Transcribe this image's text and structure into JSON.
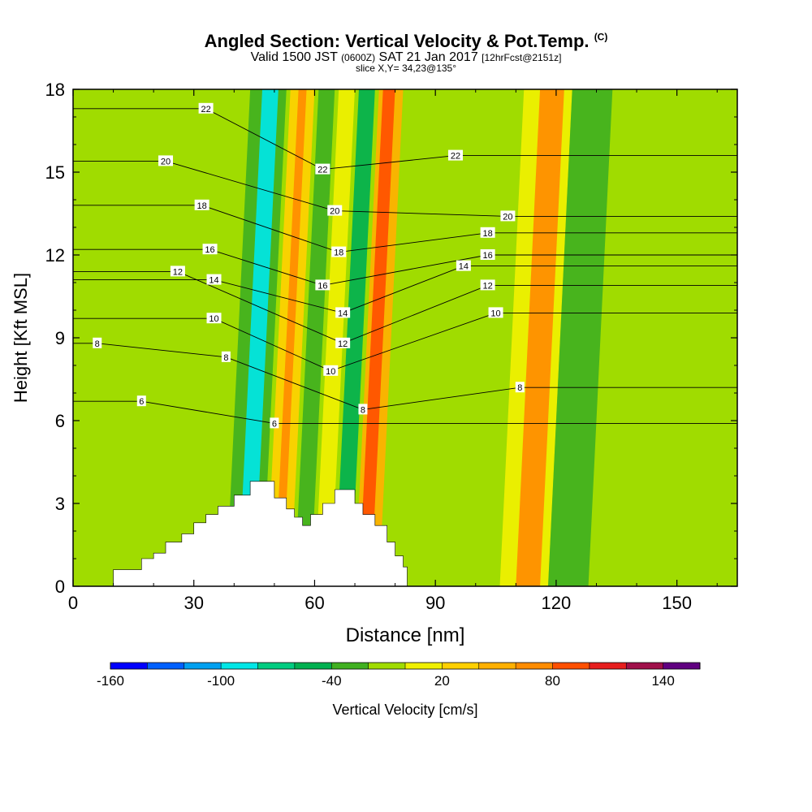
{
  "header": {
    "title": "Angled Section: Vertical Velocity & Pot.Temp.",
    "title_mark": "(C)",
    "valid_prefix": "Valid 1500 JST",
    "valid_zulu": "(0600Z)",
    "valid_date": "SAT 21 Jan 2017",
    "forecast": "[12hrFcst@2151z]",
    "slice": "slice X,Y= 34,23@135°"
  },
  "chart_data": {
    "type": "heatmap",
    "title": "Angled Section: Vertical Velocity & Pot.Temp.",
    "xlabel": "Distance [nm]",
    "ylabel": "Height [Kft MSL]",
    "xlim": [
      0,
      165
    ],
    "ylim": [
      0,
      18
    ],
    "xticks": [
      "0",
      "30",
      "60",
      "90",
      "120",
      "150"
    ],
    "yticks": [
      "0",
      "3",
      "6",
      "9",
      "12",
      "15",
      "18"
    ],
    "colorbar": {
      "label": "Vertical Velocity [cm/s]",
      "tick_labels": [
        "-160",
        "-100",
        "-40",
        "20",
        "80",
        "140"
      ],
      "colors": [
        "#0000ff",
        "#0060ff",
        "#00a0f0",
        "#00e6e6",
        "#00cc80",
        "#00b050",
        "#40b020",
        "#a0dc00",
        "#f0f000",
        "#ffd000",
        "#ffb000",
        "#ff8c00",
        "#ff5000",
        "#e61e1e",
        "#a0104a",
        "#600080"
      ]
    },
    "shading": {
      "background_color": "#a0dc00",
      "bands": [
        {
          "name": "neg",
          "x": [
            40,
            49
          ],
          "color": "#40b020"
        },
        {
          "name": "neg_core",
          "x": [
            43,
            47
          ],
          "color": "#00e6e6"
        },
        {
          "name": "pos",
          "x": [
            50,
            56
          ],
          "color": "#ffd000"
        },
        {
          "name": "pos_core",
          "x": [
            52,
            54
          ],
          "color": "#ff8c00"
        },
        {
          "name": "neg",
          "x": [
            57,
            61
          ],
          "color": "#40b020"
        },
        {
          "name": "pos",
          "x": [
            62,
            66
          ],
          "color": "#f0f000"
        },
        {
          "name": "neg",
          "x": [
            67,
            71
          ],
          "color": "#00b050"
        },
        {
          "name": "pos",
          "x": [
            72,
            78
          ],
          "color": "#ffb000"
        },
        {
          "name": "pos_core",
          "x": [
            73,
            76
          ],
          "color": "#ff5000"
        },
        {
          "name": "pos",
          "x": [
            108,
            120
          ],
          "color": "#f0f000"
        },
        {
          "name": "pos_core",
          "x": [
            112,
            118
          ],
          "color": "#ff8c00"
        },
        {
          "name": "neg",
          "x": [
            120,
            130
          ],
          "color": "#40b020"
        }
      ]
    },
    "contours": {
      "variable": "Pot.Temp.",
      "unit": "C",
      "labels": [
        {
          "text": "22",
          "x": 33,
          "y": 17.3
        },
        {
          "text": "20",
          "x": 23,
          "y": 15.4
        },
        {
          "text": "18",
          "x": 32,
          "y": 13.8
        },
        {
          "text": "16",
          "x": 34,
          "y": 12.2
        },
        {
          "text": "12",
          "x": 26,
          "y": 11.4
        },
        {
          "text": "14",
          "x": 35,
          "y": 11.1
        },
        {
          "text": "10",
          "x": 35,
          "y": 9.7
        },
        {
          "text": "8",
          "x": 6,
          "y": 8.8
        },
        {
          "text": "8",
          "x": 38,
          "y": 8.3
        },
        {
          "text": "6",
          "x": 17,
          "y": 6.7
        },
        {
          "text": "6",
          "x": 50,
          "y": 5.9
        },
        {
          "text": "22",
          "x": 62,
          "y": 15.1
        },
        {
          "text": "20",
          "x": 65,
          "y": 13.6
        },
        {
          "text": "18",
          "x": 66,
          "y": 12.1
        },
        {
          "text": "16",
          "x": 62,
          "y": 10.9
        },
        {
          "text": "14",
          "x": 67,
          "y": 9.9
        },
        {
          "text": "12",
          "x": 67,
          "y": 8.8
        },
        {
          "text": "10",
          "x": 64,
          "y": 7.8
        },
        {
          "text": "8",
          "x": 72,
          "y": 6.4
        },
        {
          "text": "22",
          "x": 95,
          "y": 15.6
        },
        {
          "text": "20",
          "x": 108,
          "y": 13.4
        },
        {
          "text": "18",
          "x": 103,
          "y": 12.8
        },
        {
          "text": "16",
          "x": 103,
          "y": 12.0
        },
        {
          "text": "14",
          "x": 97,
          "y": 11.6
        },
        {
          "text": "12",
          "x": 103,
          "y": 10.9
        },
        {
          "text": "10",
          "x": 105,
          "y": 9.9
        },
        {
          "text": "8",
          "x": 111,
          "y": 7.2
        }
      ]
    },
    "terrain": {
      "x": [
        10,
        15,
        17,
        20,
        23,
        27,
        30,
        33,
        36,
        40,
        44,
        48,
        50,
        53,
        55,
        57,
        59,
        62,
        65,
        68,
        70,
        72,
        75,
        78,
        80,
        82,
        83
      ],
      "height_kft": [
        0.6,
        0.6,
        1.0,
        1.2,
        1.6,
        1.9,
        2.3,
        2.6,
        2.9,
        3.3,
        3.8,
        3.8,
        3.2,
        2.8,
        2.5,
        2.2,
        2.6,
        3.0,
        3.5,
        3.5,
        3.0,
        2.6,
        2.2,
        1.6,
        1.1,
        0.7,
        0.3
      ]
    }
  }
}
